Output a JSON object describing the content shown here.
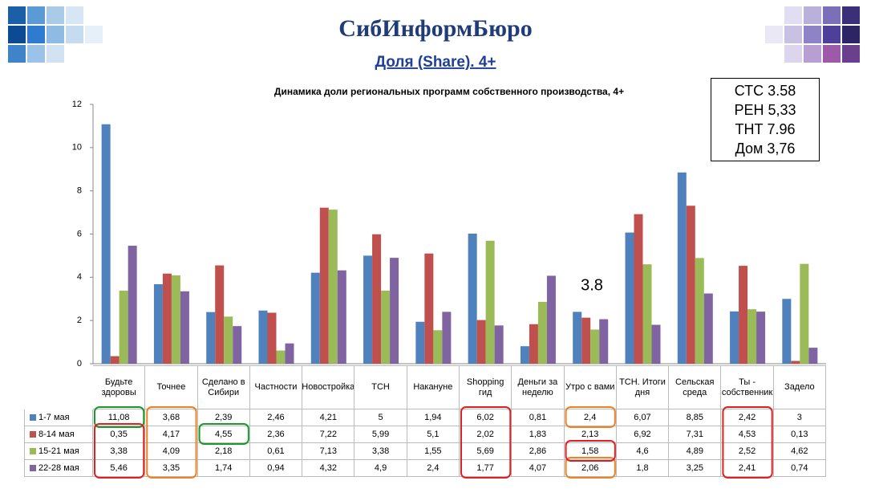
{
  "logo": "СибИнформБюро",
  "header": "Доля (Share). 4+",
  "chart_data": {
    "type": "bar",
    "title": "Динамика доли региональных программ собственного производства, 4+",
    "categories": [
      "Будьте здоровы",
      "Точнее",
      "Сделано в Сибири",
      "Частности",
      "Новостройка",
      "ТСН",
      "Накануне",
      "Shopping гид",
      "Деньги за неделю",
      "Утро с вами",
      "ТСН. Итоги дня",
      "Сельская среда",
      "Ты - собственник",
      "Задело"
    ],
    "series": [
      {
        "name": "1-7 мая",
        "color": "#4f81bd",
        "values": [
          11.08,
          3.68,
          2.39,
          2.46,
          4.21,
          5,
          1.94,
          6.02,
          0.81,
          2.4,
          6.07,
          8.85,
          2.42,
          3
        ],
        "value_labels": [
          "11,08",
          "3,68",
          "2,39",
          "2,46",
          "4,21",
          "5",
          "1,94",
          "6,02",
          "0,81",
          "2,4",
          "6,07",
          "8,85",
          "2,42",
          "3"
        ]
      },
      {
        "name": "8-14 мая",
        "color": "#c0504d",
        "values": [
          0.35,
          4.17,
          4.55,
          2.36,
          7.22,
          5.99,
          5.1,
          2.02,
          1.83,
          2.13,
          6.92,
          7.31,
          4.53,
          0.13
        ],
        "value_labels": [
          "0,35",
          "4,17",
          "4,55",
          "2,36",
          "7,22",
          "5,99",
          "5,1",
          "2,02",
          "1,83",
          "2,13",
          "6,92",
          "7,31",
          "4,53",
          "0,13"
        ]
      },
      {
        "name": "15-21 мая",
        "color": "#9bbb59",
        "values": [
          3.38,
          4.09,
          2.18,
          0.61,
          7.13,
          3.38,
          1.55,
          5.69,
          2.86,
          1.58,
          4.6,
          4.89,
          2.52,
          4.62
        ],
        "value_labels": [
          "3,38",
          "4,09",
          "2,18",
          "0,61",
          "7,13",
          "3,38",
          "1,55",
          "5,69",
          "2,86",
          "1,58",
          "4,6",
          "4,89",
          "2,52",
          "4,62"
        ]
      },
      {
        "name": "22-28 мая",
        "color": "#8064a2",
        "values": [
          5.46,
          3.35,
          1.74,
          0.94,
          4.32,
          4.9,
          2.4,
          1.77,
          4.07,
          2.06,
          1.8,
          3.25,
          2.41,
          0.74
        ],
        "value_labels": [
          "5,46",
          "3,35",
          "1,74",
          "0,94",
          "4,32",
          "4,9",
          "2,4",
          "1,77",
          "4,07",
          "2,06",
          "1,8",
          "3,25",
          "2,41",
          "0,74"
        ]
      }
    ],
    "ylim": [
      0,
      12
    ],
    "yticks": [
      0,
      2,
      4,
      6,
      8,
      10,
      12
    ],
    "annotations": [
      "3.8"
    ],
    "note_box": [
      "СТС 3.58",
      "РЕН 5,33",
      "ТНТ 7.96",
      "Дом 3,76"
    ]
  }
}
